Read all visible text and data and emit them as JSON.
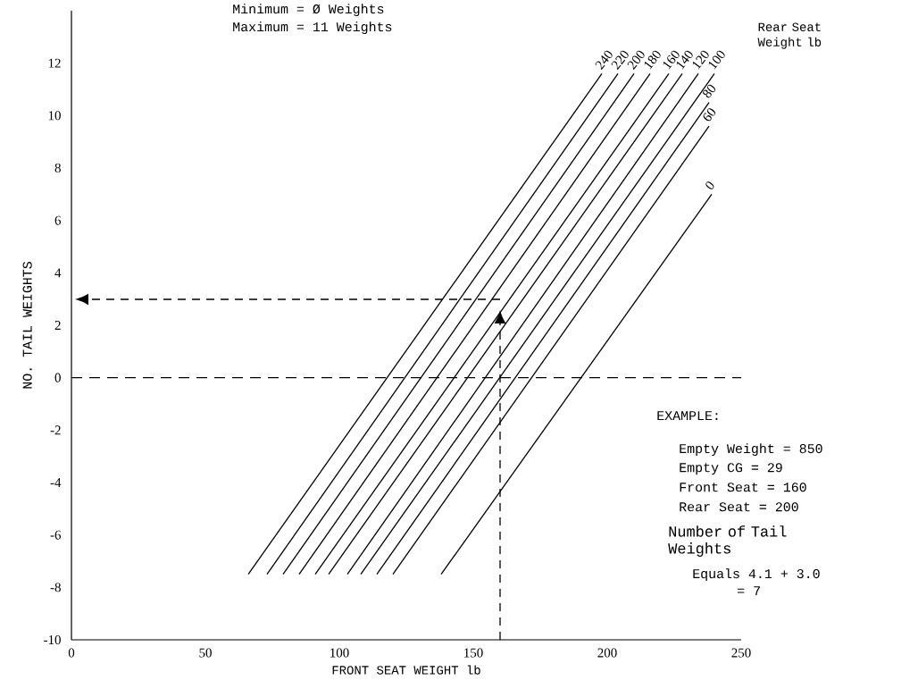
{
  "chart_data": {
    "type": "line",
    "xlabel": "FRONT SEAT WEIGHT lb",
    "ylabel": "NO. TAIL WEIGHTS",
    "legend_title": "Rear Seat Weight lb",
    "xlim": [
      0,
      250
    ],
    "xticks": [
      0,
      50,
      100,
      150,
      200,
      250
    ],
    "ylim": [
      -10,
      14
    ],
    "yticks": [
      -10,
      -8,
      -6,
      -4,
      -2,
      0,
      2,
      4,
      6,
      8,
      10,
      12
    ],
    "marker": "none",
    "line_style": "solid",
    "series": [
      {
        "name": "240",
        "color": "#000000",
        "x": [
          66,
          198
        ],
        "values": [
          -7.5,
          11.6
        ]
      },
      {
        "name": "220",
        "color": "#000000",
        "x": [
          73,
          204
        ],
        "values": [
          -7.5,
          11.6
        ]
      },
      {
        "name": "200",
        "color": "#000000",
        "x": [
          79,
          210
        ],
        "values": [
          -7.5,
          11.6
        ]
      },
      {
        "name": "180",
        "color": "#000000",
        "x": [
          85,
          216
        ],
        "values": [
          -7.5,
          11.6
        ]
      },
      {
        "name": "160",
        "color": "#000000",
        "x": [
          91,
          223
        ],
        "values": [
          -7.5,
          11.6
        ]
      },
      {
        "name": "140",
        "color": "#000000",
        "x": [
          96,
          228
        ],
        "values": [
          -7.5,
          11.6
        ]
      },
      {
        "name": "120",
        "color": "#000000",
        "x": [
          103,
          234
        ],
        "values": [
          -7.5,
          11.6
        ]
      },
      {
        "name": "100",
        "color": "#000000",
        "x": [
          108,
          240
        ],
        "values": [
          -7.5,
          11.6
        ]
      },
      {
        "name": "80",
        "color": "#000000",
        "x": [
          114,
          238
        ],
        "values": [
          -7.5,
          10.5
        ]
      },
      {
        "name": "60",
        "color": "#000000",
        "x": [
          120,
          238
        ],
        "values": [
          -7.5,
          9.6
        ]
      },
      {
        "name": "0",
        "color": "#000000",
        "x": [
          138,
          239
        ],
        "values": [
          -7.5,
          7.0
        ]
      }
    ],
    "ref_lines": [
      {
        "axis": "y",
        "value": 0,
        "line_style": "dashed",
        "color": "#000000"
      }
    ],
    "annotations": [
      "Minimum = Ø Weights",
      "Maximum = 11 Weights",
      "EXAMPLE:",
      "Empty Weight = 850",
      "Empty CG = 29",
      "Front Seat = 160",
      "Rear Seat = 200",
      "Number of Tail Weights",
      "Equals 4.1 + 3.0",
      "= 7"
    ]
  }
}
